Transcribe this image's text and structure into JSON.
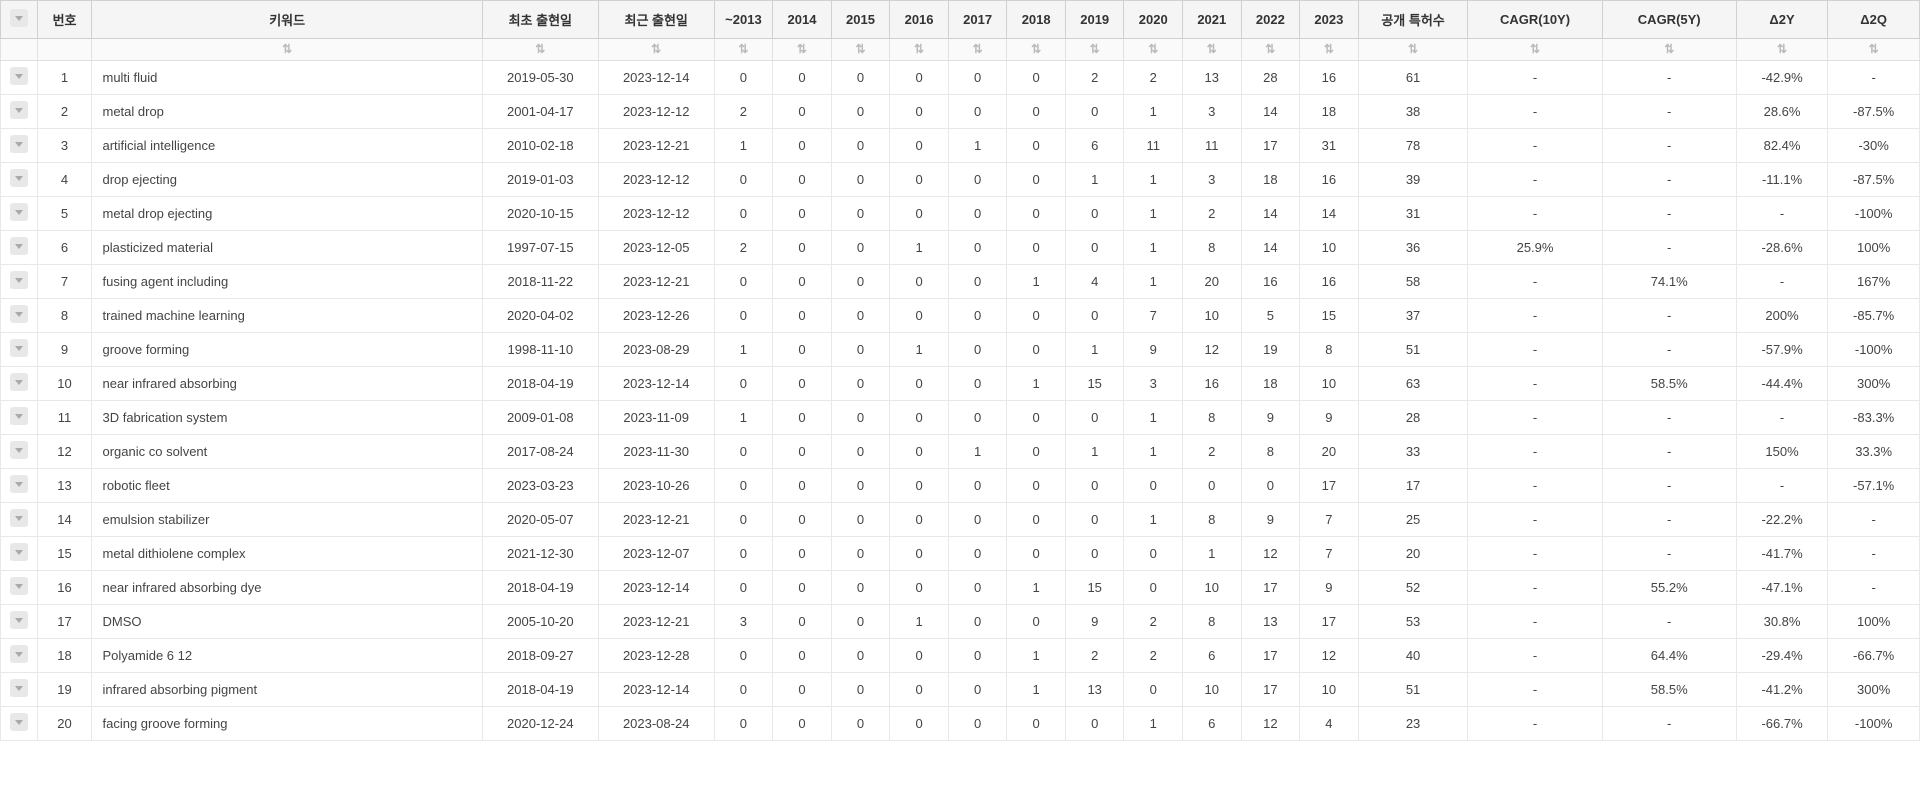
{
  "headers": {
    "checkbox": "",
    "number": "번호",
    "keyword": "키워드",
    "first_date": "최초 출현일",
    "recent_date": "최근 출현일",
    "y_pre2013": "~2013",
    "y2014": "2014",
    "y2015": "2015",
    "y2016": "2016",
    "y2017": "2017",
    "y2018": "2018",
    "y2019": "2019",
    "y2020": "2020",
    "y2021": "2021",
    "y2022": "2022",
    "y2023": "2023",
    "patent_count": "공개 특허수",
    "cagr10y": "CAGR(10Y)",
    "cagr5y": "CAGR(5Y)",
    "delta2y": "Δ2Y",
    "delta2q": "Δ2Q"
  },
  "sort_glyph": "⇅",
  "rows": [
    {
      "num": "1",
      "keyword": "multi fluid",
      "first": "2019-05-30",
      "recent": "2023-12-14",
      "pre2013": "0",
      "y2014": "0",
      "y2015": "0",
      "y2016": "0",
      "y2017": "0",
      "y2018": "0",
      "y2019": "2",
      "y2020": "2",
      "y2021": "13",
      "y2022": "28",
      "y2023": "16",
      "count": "61",
      "cagr10y": "-",
      "cagr5y": "-",
      "d2y": "-42.9%",
      "d2q": "-"
    },
    {
      "num": "2",
      "keyword": "metal drop",
      "first": "2001-04-17",
      "recent": "2023-12-12",
      "pre2013": "2",
      "y2014": "0",
      "y2015": "0",
      "y2016": "0",
      "y2017": "0",
      "y2018": "0",
      "y2019": "0",
      "y2020": "1",
      "y2021": "3",
      "y2022": "14",
      "y2023": "18",
      "count": "38",
      "cagr10y": "-",
      "cagr5y": "-",
      "d2y": "28.6%",
      "d2q": "-87.5%"
    },
    {
      "num": "3",
      "keyword": "artificial intelligence",
      "first": "2010-02-18",
      "recent": "2023-12-21",
      "pre2013": "1",
      "y2014": "0",
      "y2015": "0",
      "y2016": "0",
      "y2017": "1",
      "y2018": "0",
      "y2019": "6",
      "y2020": "11",
      "y2021": "11",
      "y2022": "17",
      "y2023": "31",
      "count": "78",
      "cagr10y": "-",
      "cagr5y": "-",
      "d2y": "82.4%",
      "d2q": "-30%"
    },
    {
      "num": "4",
      "keyword": "drop ejecting",
      "first": "2019-01-03",
      "recent": "2023-12-12",
      "pre2013": "0",
      "y2014": "0",
      "y2015": "0",
      "y2016": "0",
      "y2017": "0",
      "y2018": "0",
      "y2019": "1",
      "y2020": "1",
      "y2021": "3",
      "y2022": "18",
      "y2023": "16",
      "count": "39",
      "cagr10y": "-",
      "cagr5y": "-",
      "d2y": "-11.1%",
      "d2q": "-87.5%"
    },
    {
      "num": "5",
      "keyword": "metal drop ejecting",
      "first": "2020-10-15",
      "recent": "2023-12-12",
      "pre2013": "0",
      "y2014": "0",
      "y2015": "0",
      "y2016": "0",
      "y2017": "0",
      "y2018": "0",
      "y2019": "0",
      "y2020": "1",
      "y2021": "2",
      "y2022": "14",
      "y2023": "14",
      "count": "31",
      "cagr10y": "-",
      "cagr5y": "-",
      "d2y": "-",
      "d2q": "-100%"
    },
    {
      "num": "6",
      "keyword": "plasticized material",
      "first": "1997-07-15",
      "recent": "2023-12-05",
      "pre2013": "2",
      "y2014": "0",
      "y2015": "0",
      "y2016": "1",
      "y2017": "0",
      "y2018": "0",
      "y2019": "0",
      "y2020": "1",
      "y2021": "8",
      "y2022": "14",
      "y2023": "10",
      "count": "36",
      "cagr10y": "25.9%",
      "cagr5y": "-",
      "d2y": "-28.6%",
      "d2q": "100%"
    },
    {
      "num": "7",
      "keyword": "fusing agent including",
      "first": "2018-11-22",
      "recent": "2023-12-21",
      "pre2013": "0",
      "y2014": "0",
      "y2015": "0",
      "y2016": "0",
      "y2017": "0",
      "y2018": "1",
      "y2019": "4",
      "y2020": "1",
      "y2021": "20",
      "y2022": "16",
      "y2023": "16",
      "count": "58",
      "cagr10y": "-",
      "cagr5y": "74.1%",
      "d2y": "-",
      "d2q": "167%"
    },
    {
      "num": "8",
      "keyword": "trained machine learning",
      "first": "2020-04-02",
      "recent": "2023-12-26",
      "pre2013": "0",
      "y2014": "0",
      "y2015": "0",
      "y2016": "0",
      "y2017": "0",
      "y2018": "0",
      "y2019": "0",
      "y2020": "7",
      "y2021": "10",
      "y2022": "5",
      "y2023": "15",
      "count": "37",
      "cagr10y": "-",
      "cagr5y": "-",
      "d2y": "200%",
      "d2q": "-85.7%"
    },
    {
      "num": "9",
      "keyword": "groove forming",
      "first": "1998-11-10",
      "recent": "2023-08-29",
      "pre2013": "1",
      "y2014": "0",
      "y2015": "0",
      "y2016": "1",
      "y2017": "0",
      "y2018": "0",
      "y2019": "1",
      "y2020": "9",
      "y2021": "12",
      "y2022": "19",
      "y2023": "8",
      "count": "51",
      "cagr10y": "-",
      "cagr5y": "-",
      "d2y": "-57.9%",
      "d2q": "-100%"
    },
    {
      "num": "10",
      "keyword": "near infrared absorbing",
      "first": "2018-04-19",
      "recent": "2023-12-14",
      "pre2013": "0",
      "y2014": "0",
      "y2015": "0",
      "y2016": "0",
      "y2017": "0",
      "y2018": "1",
      "y2019": "15",
      "y2020": "3",
      "y2021": "16",
      "y2022": "18",
      "y2023": "10",
      "count": "63",
      "cagr10y": "-",
      "cagr5y": "58.5%",
      "d2y": "-44.4%",
      "d2q": "300%"
    },
    {
      "num": "11",
      "keyword": "3D fabrication system",
      "first": "2009-01-08",
      "recent": "2023-11-09",
      "pre2013": "1",
      "y2014": "0",
      "y2015": "0",
      "y2016": "0",
      "y2017": "0",
      "y2018": "0",
      "y2019": "0",
      "y2020": "1",
      "y2021": "8",
      "y2022": "9",
      "y2023": "9",
      "count": "28",
      "cagr10y": "-",
      "cagr5y": "-",
      "d2y": "-",
      "d2q": "-83.3%"
    },
    {
      "num": "12",
      "keyword": "organic co solvent",
      "first": "2017-08-24",
      "recent": "2023-11-30",
      "pre2013": "0",
      "y2014": "0",
      "y2015": "0",
      "y2016": "0",
      "y2017": "1",
      "y2018": "0",
      "y2019": "1",
      "y2020": "1",
      "y2021": "2",
      "y2022": "8",
      "y2023": "20",
      "count": "33",
      "cagr10y": "-",
      "cagr5y": "-",
      "d2y": "150%",
      "d2q": "33.3%"
    },
    {
      "num": "13",
      "keyword": "robotic fleet",
      "first": "2023-03-23",
      "recent": "2023-10-26",
      "pre2013": "0",
      "y2014": "0",
      "y2015": "0",
      "y2016": "0",
      "y2017": "0",
      "y2018": "0",
      "y2019": "0",
      "y2020": "0",
      "y2021": "0",
      "y2022": "0",
      "y2023": "17",
      "count": "17",
      "cagr10y": "-",
      "cagr5y": "-",
      "d2y": "-",
      "d2q": "-57.1%"
    },
    {
      "num": "14",
      "keyword": "emulsion stabilizer",
      "first": "2020-05-07",
      "recent": "2023-12-21",
      "pre2013": "0",
      "y2014": "0",
      "y2015": "0",
      "y2016": "0",
      "y2017": "0",
      "y2018": "0",
      "y2019": "0",
      "y2020": "1",
      "y2021": "8",
      "y2022": "9",
      "y2023": "7",
      "count": "25",
      "cagr10y": "-",
      "cagr5y": "-",
      "d2y": "-22.2%",
      "d2q": "-"
    },
    {
      "num": "15",
      "keyword": "metal dithiolene complex",
      "first": "2021-12-30",
      "recent": "2023-12-07",
      "pre2013": "0",
      "y2014": "0",
      "y2015": "0",
      "y2016": "0",
      "y2017": "0",
      "y2018": "0",
      "y2019": "0",
      "y2020": "0",
      "y2021": "1",
      "y2022": "12",
      "y2023": "7",
      "count": "20",
      "cagr10y": "-",
      "cagr5y": "-",
      "d2y": "-41.7%",
      "d2q": "-"
    },
    {
      "num": "16",
      "keyword": "near infrared absorbing dye",
      "first": "2018-04-19",
      "recent": "2023-12-14",
      "pre2013": "0",
      "y2014": "0",
      "y2015": "0",
      "y2016": "0",
      "y2017": "0",
      "y2018": "1",
      "y2019": "15",
      "y2020": "0",
      "y2021": "10",
      "y2022": "17",
      "y2023": "9",
      "count": "52",
      "cagr10y": "-",
      "cagr5y": "55.2%",
      "d2y": "-47.1%",
      "d2q": "-"
    },
    {
      "num": "17",
      "keyword": "DMSO",
      "first": "2005-10-20",
      "recent": "2023-12-21",
      "pre2013": "3",
      "y2014": "0",
      "y2015": "0",
      "y2016": "1",
      "y2017": "0",
      "y2018": "0",
      "y2019": "9",
      "y2020": "2",
      "y2021": "8",
      "y2022": "13",
      "y2023": "17",
      "count": "53",
      "cagr10y": "-",
      "cagr5y": "-",
      "d2y": "30.8%",
      "d2q": "100%"
    },
    {
      "num": "18",
      "keyword": "Polyamide 6 12",
      "first": "2018-09-27",
      "recent": "2023-12-28",
      "pre2013": "0",
      "y2014": "0",
      "y2015": "0",
      "y2016": "0",
      "y2017": "0",
      "y2018": "1",
      "y2019": "2",
      "y2020": "2",
      "y2021": "6",
      "y2022": "17",
      "y2023": "12",
      "count": "40",
      "cagr10y": "-",
      "cagr5y": "64.4%",
      "d2y": "-29.4%",
      "d2q": "-66.7%"
    },
    {
      "num": "19",
      "keyword": "infrared absorbing pigment",
      "first": "2018-04-19",
      "recent": "2023-12-14",
      "pre2013": "0",
      "y2014": "0",
      "y2015": "0",
      "y2016": "0",
      "y2017": "0",
      "y2018": "1",
      "y2019": "13",
      "y2020": "0",
      "y2021": "10",
      "y2022": "17",
      "y2023": "10",
      "count": "51",
      "cagr10y": "-",
      "cagr5y": "58.5%",
      "d2y": "-41.2%",
      "d2q": "300%"
    },
    {
      "num": "20",
      "keyword": "facing groove forming",
      "first": "2020-12-24",
      "recent": "2023-08-24",
      "pre2013": "0",
      "y2014": "0",
      "y2015": "0",
      "y2016": "0",
      "y2017": "0",
      "y2018": "0",
      "y2019": "0",
      "y2020": "1",
      "y2021": "6",
      "y2022": "12",
      "y2023": "4",
      "count": "23",
      "cagr10y": "-",
      "cagr5y": "-",
      "d2y": "-66.7%",
      "d2q": "-100%"
    }
  ]
}
